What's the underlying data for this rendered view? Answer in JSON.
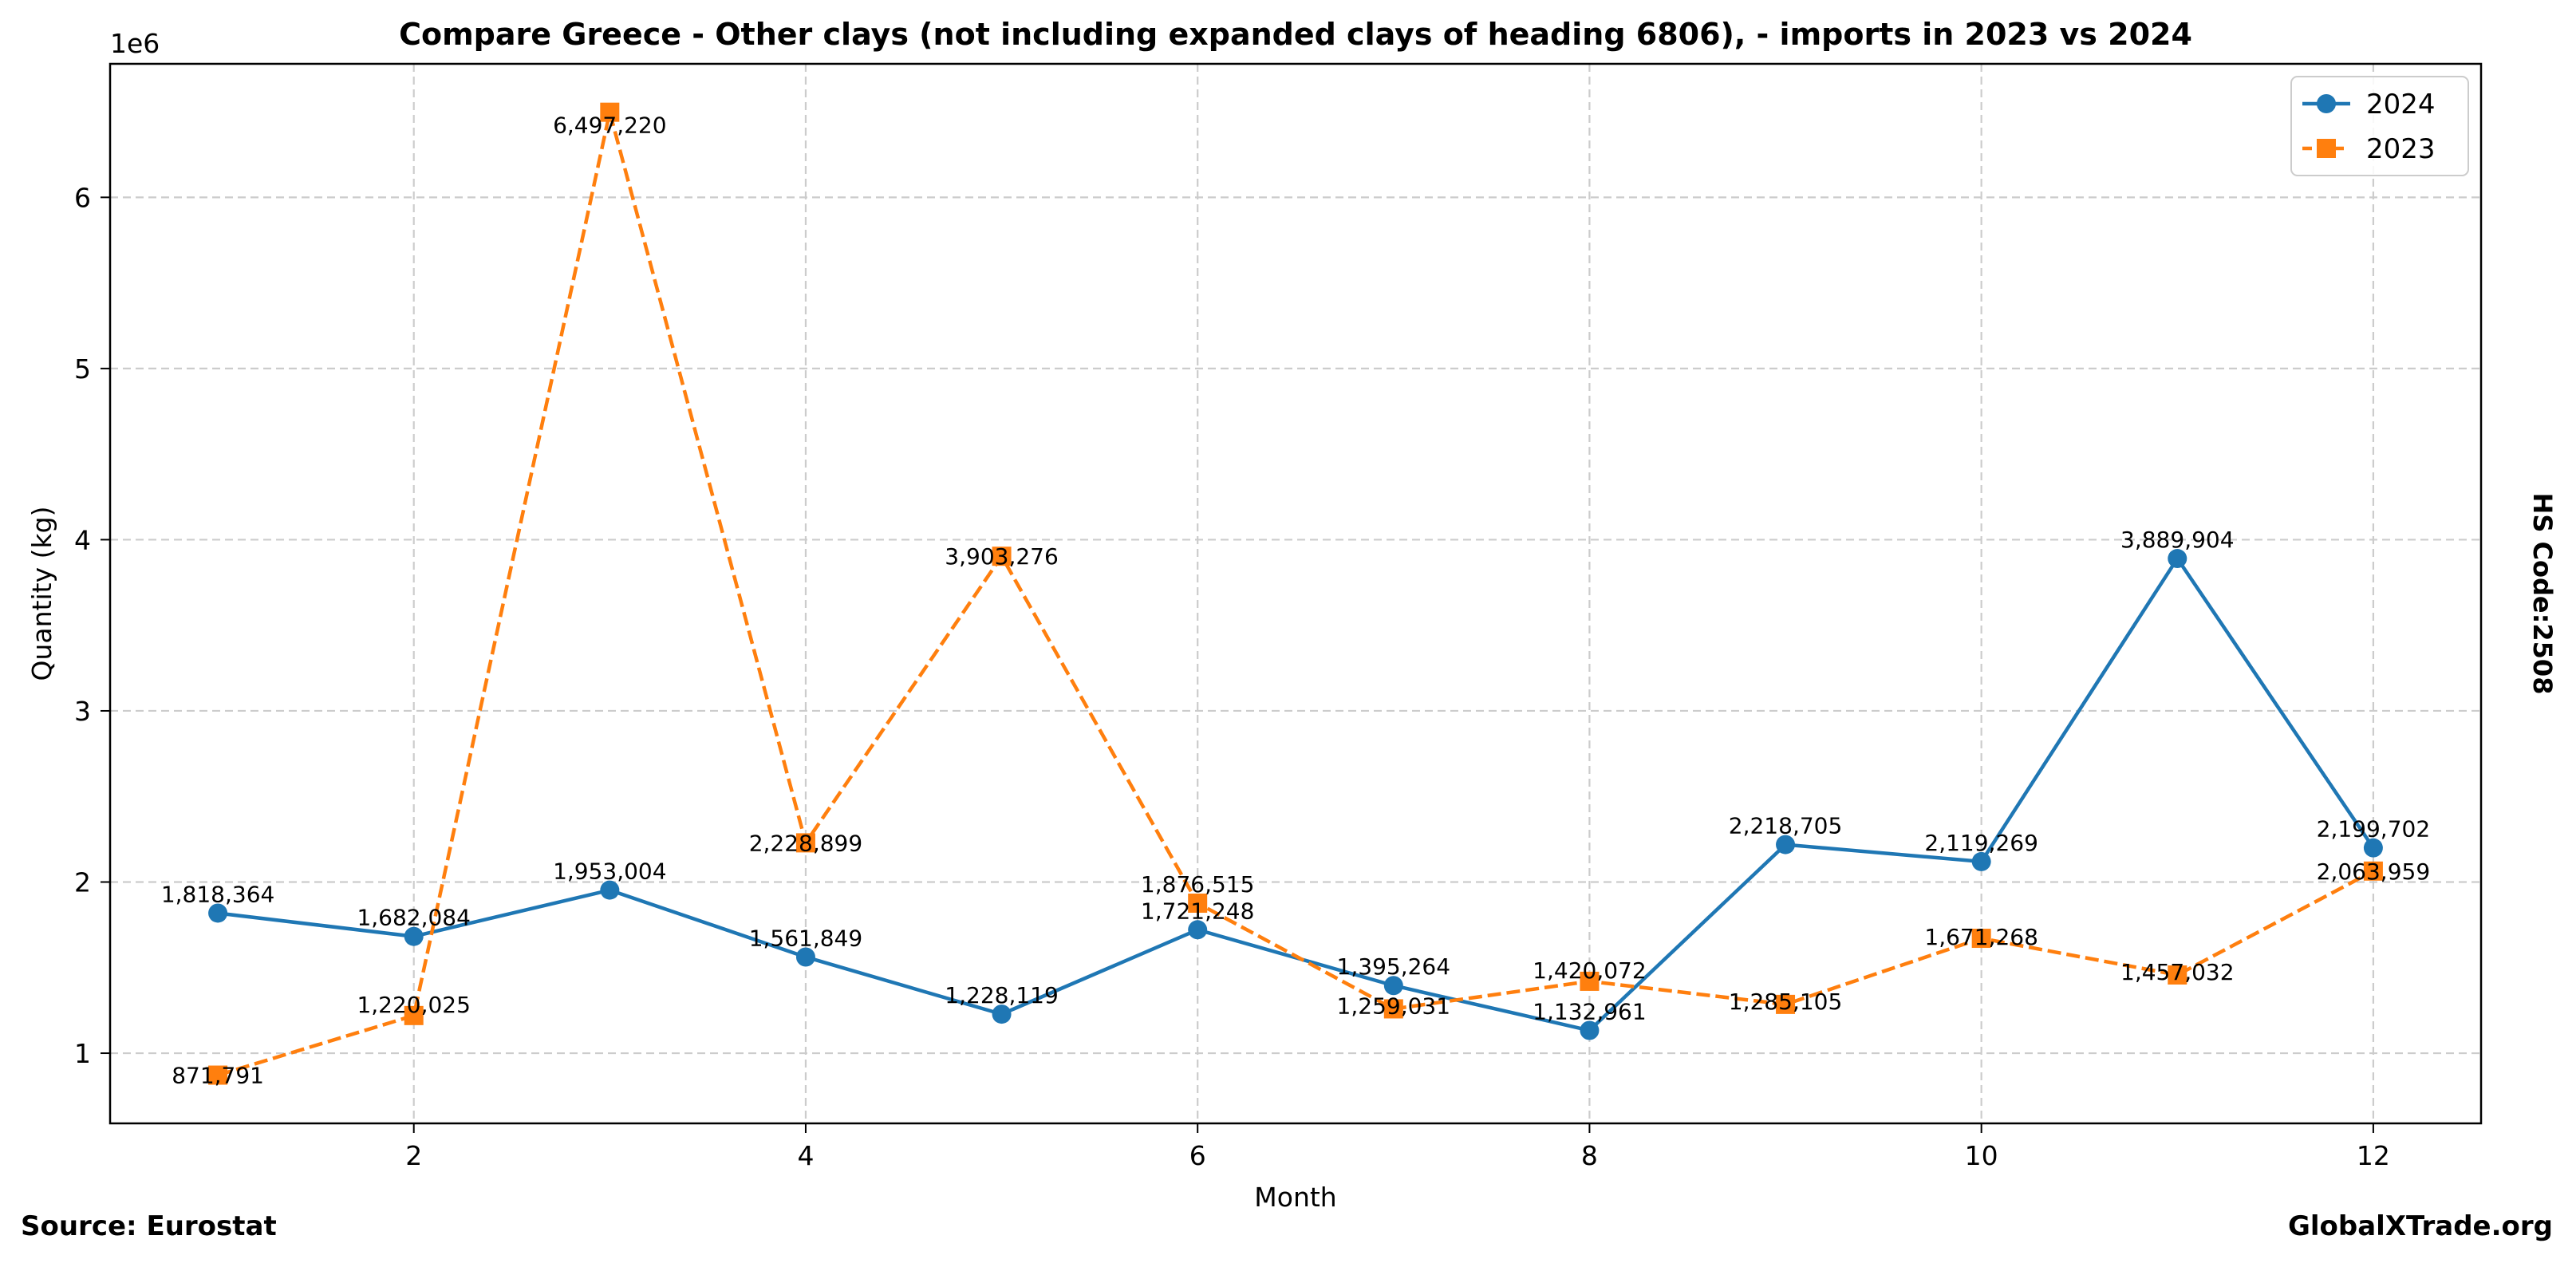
{
  "chart_data": {
    "type": "line",
    "title": "Compare Greece - Other clays (not including expanded clays of heading 6806), - imports in 2023 vs 2024",
    "xlabel": "Month",
    "ylabel": "Quantity (kg)",
    "y_scale_label": "1e6",
    "x": [
      1,
      2,
      3,
      4,
      5,
      6,
      7,
      8,
      9,
      10,
      11,
      12
    ],
    "xticks": [
      2,
      4,
      6,
      8,
      10,
      12
    ],
    "xtick_labels": [
      "2",
      "4",
      "6",
      "8",
      "10",
      "12"
    ],
    "yticks": [
      1000000,
      2000000,
      3000000,
      4000000,
      5000000,
      6000000
    ],
    "ytick_labels": [
      "1",
      "2",
      "3",
      "4",
      "5",
      "6"
    ],
    "xlim": [
      0.45,
      12.55
    ],
    "ylim": [
      590000,
      6780000
    ],
    "grid": true,
    "legend_position": "top-right",
    "series": [
      {
        "name": "2024",
        "color": "#1f77b4",
        "line_style": "solid",
        "marker": "circle",
        "values": [
          1818364,
          1682084,
          1953004,
          1561849,
          1228119,
          1721248,
          1395264,
          1132961,
          2218705,
          2119269,
          3889904,
          2199702
        ],
        "labels": [
          "1,818,364",
          "1,682,084",
          "1,953,004",
          "1,561,849",
          "1,228,119",
          "1,721,248",
          "1,395,264",
          "1,132,961",
          "2,218,705",
          "2,119,269",
          "3,889,904",
          "2,199,702"
        ]
      },
      {
        "name": "2023",
        "color": "#ff7f0e",
        "line_style": "dashed",
        "marker": "square",
        "values": [
          871791,
          1220025,
          6497220,
          2228899,
          3903276,
          1876515,
          1259031,
          1420072,
          1285105,
          1671268,
          1457032,
          2063959
        ],
        "labels": [
          "871,791",
          "1,220,025",
          "6,497,220",
          "2,228,899",
          "3,903,276",
          "1,876,515",
          "1,259,031",
          "1,420,072",
          "1,285,105",
          "1,671,268",
          "1,457,032",
          "2,063,959"
        ]
      }
    ]
  },
  "footer": {
    "source": "Source: Eurostat",
    "brand": "GlobalXTrade.org"
  },
  "side_label": "HS Code:2508"
}
